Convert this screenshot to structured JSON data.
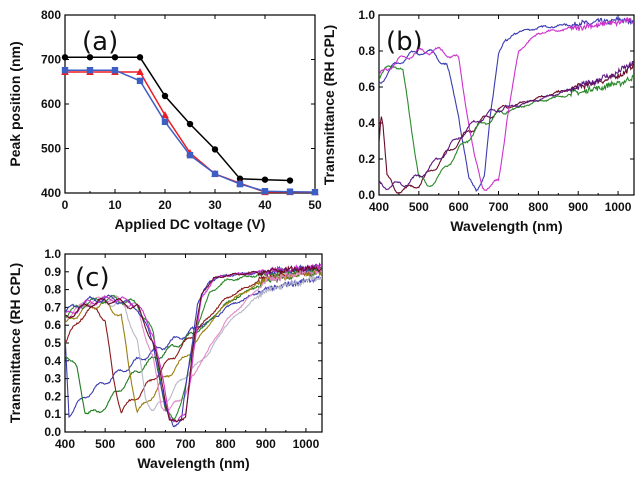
{
  "chart_data": [
    {
      "id": "a",
      "type": "line",
      "panel_label": "(a)",
      "xlabel": "Applied DC voltage (V)",
      "ylabel": "Peak position (nm)",
      "xlim": [
        0,
        50
      ],
      "ylim": [
        400,
        800
      ],
      "xticks": [
        0,
        10,
        20,
        30,
        40,
        50
      ],
      "yticks": [
        400,
        500,
        600,
        700,
        800
      ],
      "grid": false,
      "series": [
        {
          "color": "#000000",
          "marker": "circle",
          "x": [
            0,
            5,
            10,
            15,
            20,
            25,
            30,
            35,
            40,
            45
          ],
          "y": [
            705,
            705,
            705,
            705,
            618,
            555,
            498,
            432,
            430,
            428
          ]
        },
        {
          "color": "#ee1c24",
          "marker": "triangle",
          "x": [
            0,
            5,
            10,
            15,
            20,
            25,
            30,
            35,
            40,
            45,
            50
          ],
          "y": [
            672,
            672,
            672,
            672,
            575,
            490,
            443,
            422,
            402,
            402,
            402
          ]
        },
        {
          "color": "#3d5fc4",
          "marker": "square",
          "x": [
            0,
            5,
            10,
            15,
            20,
            25,
            30,
            35,
            40,
            45,
            50
          ],
          "y": [
            676,
            676,
            676,
            652,
            560,
            485,
            443,
            420,
            404,
            403,
            402
          ]
        }
      ]
    },
    {
      "id": "b",
      "type": "line",
      "panel_label": "(b)",
      "xlabel": "Wavelength (nm)",
      "ylabel": "Transmittance (RH CPL)",
      "xlim": [
        400,
        1040
      ],
      "ylim": [
        0.0,
        1.0
      ],
      "xticks": [
        400,
        500,
        600,
        700,
        800,
        900,
        1000
      ],
      "yticks": [
        0.0,
        0.2,
        0.4,
        0.6,
        0.8,
        1.0
      ],
      "grid": false,
      "series": [
        {
          "color": "#3b3bb0",
          "x": [
            400,
            430,
            470,
            510,
            540,
            570,
            600,
            625,
            645,
            665,
            680,
            700,
            740,
            800,
            900,
            1000,
            1040
          ],
          "y": [
            0.62,
            0.7,
            0.77,
            0.8,
            0.78,
            0.72,
            0.45,
            0.08,
            0.04,
            0.1,
            0.45,
            0.8,
            0.9,
            0.93,
            0.95,
            0.97,
            0.97
          ]
        },
        {
          "color": "#6a0d2a",
          "x": [
            400,
            405,
            410,
            420,
            440,
            470,
            500,
            550,
            600,
            650,
            700,
            800,
            900,
            1000,
            1040
          ],
          "y": [
            0.3,
            0.46,
            0.4,
            0.1,
            0.03,
            0.03,
            0.06,
            0.18,
            0.3,
            0.4,
            0.47,
            0.54,
            0.6,
            0.66,
            0.72
          ]
        },
        {
          "color": "#2a8a2a",
          "x": [
            400,
            420,
            440,
            460,
            480,
            500,
            520,
            550,
            600,
            650,
            700,
            800,
            900,
            1000,
            1040
          ],
          "y": [
            0.65,
            0.7,
            0.73,
            0.68,
            0.4,
            0.1,
            0.05,
            0.1,
            0.25,
            0.38,
            0.45,
            0.52,
            0.57,
            0.62,
            0.65
          ]
        },
        {
          "color": "#cc33cc",
          "x": [
            400,
            430,
            470,
            510,
            560,
            600,
            640,
            660,
            680,
            700,
            720,
            750,
            800,
            900,
            1000,
            1040
          ],
          "y": [
            0.66,
            0.72,
            0.77,
            0.8,
            0.8,
            0.75,
            0.2,
            0.05,
            0.04,
            0.08,
            0.4,
            0.8,
            0.9,
            0.93,
            0.96,
            0.97
          ]
        },
        {
          "color": "#5a1880",
          "x": [
            400,
            420,
            460,
            500,
            550,
            600,
            650,
            700,
            750,
            800,
            900,
            1000,
            1040
          ],
          "y": [
            0.06,
            0.05,
            0.06,
            0.1,
            0.2,
            0.32,
            0.42,
            0.48,
            0.5,
            0.53,
            0.6,
            0.68,
            0.74
          ]
        }
      ]
    },
    {
      "id": "c",
      "type": "line",
      "panel_label": "(c)",
      "xlabel": "Wavelength (nm)",
      "ylabel": "Transmittance (RH CPL)",
      "xlim": [
        400,
        1040
      ],
      "ylim": [
        0.0,
        1.0
      ],
      "xticks": [
        400,
        500,
        600,
        700,
        800,
        900,
        1000
      ],
      "yticks": [
        0.0,
        0.1,
        0.2,
        0.3,
        0.4,
        0.5,
        0.6,
        0.7,
        0.8,
        0.9,
        1.0
      ],
      "grid": false,
      "series": [
        {
          "color": "#3b3bb0",
          "x": [
            400,
            410,
            430,
            460,
            500,
            540,
            580,
            620,
            660,
            700,
            740,
            780,
            800,
            900,
            1000,
            1040
          ],
          "y": [
            0.55,
            0.1,
            0.15,
            0.22,
            0.28,
            0.34,
            0.4,
            0.45,
            0.5,
            0.55,
            0.6,
            0.65,
            0.7,
            0.8,
            0.85,
            0.87
          ]
        },
        {
          "color": "#1f7a1f",
          "x": [
            400,
            430,
            450,
            480,
            520,
            560,
            600,
            650,
            700,
            750,
            800,
            900,
            1000,
            1040
          ],
          "y": [
            0.45,
            0.35,
            0.12,
            0.1,
            0.2,
            0.3,
            0.38,
            0.45,
            0.52,
            0.6,
            0.72,
            0.85,
            0.89,
            0.9
          ]
        },
        {
          "color": "#8b1a1a",
          "x": [
            400,
            440,
            480,
            500,
            520,
            540,
            580,
            620,
            660,
            700,
            740,
            800,
            900,
            1000,
            1040
          ],
          "y": [
            0.5,
            0.65,
            0.7,
            0.62,
            0.3,
            0.12,
            0.2,
            0.3,
            0.4,
            0.5,
            0.6,
            0.75,
            0.87,
            0.9,
            0.91
          ]
        },
        {
          "color": "#9a7f10",
          "x": [
            400,
            450,
            500,
            540,
            560,
            580,
            600,
            640,
            700,
            750,
            800,
            900,
            1000,
            1040
          ],
          "y": [
            0.6,
            0.7,
            0.72,
            0.65,
            0.35,
            0.12,
            0.15,
            0.28,
            0.42,
            0.58,
            0.72,
            0.86,
            0.89,
            0.9
          ]
        },
        {
          "color": "#b8b8c8",
          "x": [
            400,
            450,
            500,
            550,
            580,
            600,
            620,
            660,
            700,
            760,
            800,
            900,
            1000,
            1040
          ],
          "y": [
            0.63,
            0.72,
            0.74,
            0.7,
            0.5,
            0.2,
            0.12,
            0.2,
            0.32,
            0.45,
            0.6,
            0.8,
            0.85,
            0.87
          ]
        },
        {
          "color": "#e38ac8",
          "x": [
            400,
            460,
            520,
            580,
            620,
            640,
            660,
            700,
            740,
            800,
            900,
            1000,
            1040
          ],
          "y": [
            0.65,
            0.73,
            0.75,
            0.7,
            0.4,
            0.15,
            0.12,
            0.22,
            0.4,
            0.62,
            0.85,
            0.9,
            0.91
          ]
        },
        {
          "color": "#2a8a2a",
          "x": [
            400,
            460,
            520,
            580,
            620,
            650,
            670,
            700,
            730,
            760,
            800,
            900,
            1000,
            1040
          ],
          "y": [
            0.66,
            0.73,
            0.75,
            0.72,
            0.55,
            0.12,
            0.06,
            0.25,
            0.6,
            0.78,
            0.85,
            0.89,
            0.91,
            0.92
          ]
        },
        {
          "color": "#3b3bb0",
          "x": [
            400,
            460,
            520,
            580,
            620,
            650,
            670,
            690,
            710,
            730,
            760,
            800,
            900,
            1000,
            1040
          ],
          "y": [
            0.68,
            0.74,
            0.75,
            0.7,
            0.5,
            0.12,
            0.05,
            0.06,
            0.4,
            0.72,
            0.85,
            0.88,
            0.9,
            0.92,
            0.93
          ]
        },
        {
          "color": "#cc33cc",
          "x": [
            400,
            460,
            520,
            580,
            620,
            660,
            680,
            700,
            720,
            740,
            770,
            800,
            900,
            1000,
            1040
          ],
          "y": [
            0.65,
            0.73,
            0.75,
            0.72,
            0.55,
            0.1,
            0.05,
            0.1,
            0.45,
            0.75,
            0.86,
            0.88,
            0.9,
            0.92,
            0.93
          ]
        },
        {
          "color": "#6a0d2a",
          "x": [
            400,
            460,
            520,
            580,
            620,
            660,
            680,
            700,
            720,
            740,
            770,
            800,
            900,
            1000,
            1040
          ],
          "y": [
            0.64,
            0.72,
            0.74,
            0.7,
            0.5,
            0.08,
            0.04,
            0.1,
            0.5,
            0.78,
            0.86,
            0.88,
            0.9,
            0.92,
            0.92
          ]
        }
      ]
    }
  ]
}
